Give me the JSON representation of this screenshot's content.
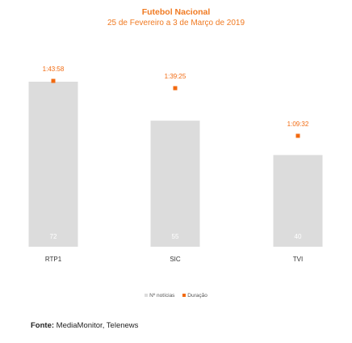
{
  "chart_data": {
    "type": "bar",
    "title": "Futebol Nacional",
    "subtitle": "25 de Fevereiro a 3 de Março de 2019",
    "categories": [
      "RTP1",
      "SIC",
      "TVI"
    ],
    "series": [
      {
        "name": "Nº notícias",
        "values": [
          72,
          55,
          40
        ],
        "color": "#dcdcdc",
        "label_color": "#ffffff"
      },
      {
        "name": "Duração",
        "values": [
          "1:43:58",
          "1:39:25",
          "1:09:32"
        ],
        "seconds": [
          6238,
          5965,
          4172
        ],
        "color": "#f26a10"
      }
    ],
    "legend_position": "bottom",
    "grid": false
  },
  "source": {
    "label": "Fonte:",
    "text": "MediaMonitor, Telenews"
  }
}
